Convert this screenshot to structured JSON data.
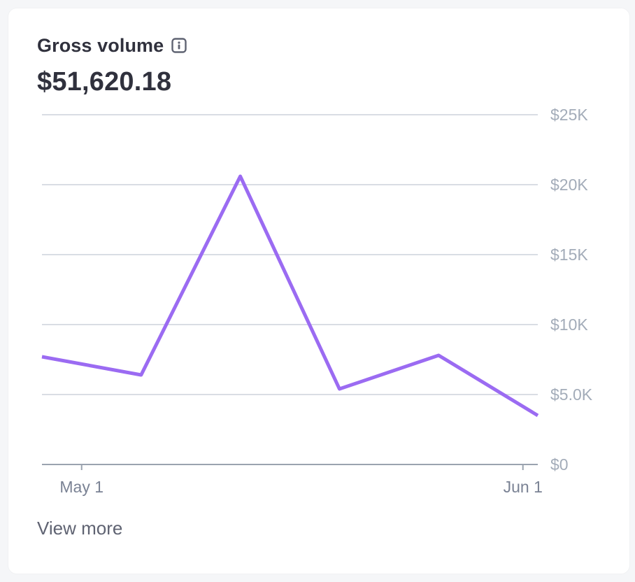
{
  "card": {
    "title": "Gross volume",
    "info_icon": "info-icon",
    "amount": "$51,620.18",
    "view_more": "View more"
  },
  "colors": {
    "line": "#9b6bf2",
    "grid": "#d9dde4",
    "axis": "#9aa3af",
    "tick_text": "#a3acb9",
    "x_tick_text": "#7a8294"
  },
  "chart_data": {
    "type": "line",
    "title": "Gross volume",
    "xlabel": "",
    "ylabel": "",
    "ylim": [
      0,
      25000
    ],
    "y_ticks": [
      {
        "value": 0,
        "label": "$0"
      },
      {
        "value": 5000,
        "label": "$5.0K"
      },
      {
        "value": 10000,
        "label": "$10K"
      },
      {
        "value": 15000,
        "label": "$15K"
      },
      {
        "value": 20000,
        "label": "$20K"
      },
      {
        "value": 25000,
        "label": "$25K"
      }
    ],
    "x_ticks": [
      {
        "index": 0.4,
        "label": "May 1"
      },
      {
        "index": 4.85,
        "label": "Jun 1"
      }
    ],
    "x_range": [
      0,
      5
    ],
    "grid": true,
    "series": [
      {
        "values": [
          {
            "x": 0,
            "y": 7700
          },
          {
            "x": 1,
            "y": 6400
          },
          {
            "x": 2,
            "y": 20600
          },
          {
            "x": 3,
            "y": 5400
          },
          {
            "x": 4,
            "y": 7800
          },
          {
            "x": 5,
            "y": 3500
          }
        ]
      }
    ]
  }
}
